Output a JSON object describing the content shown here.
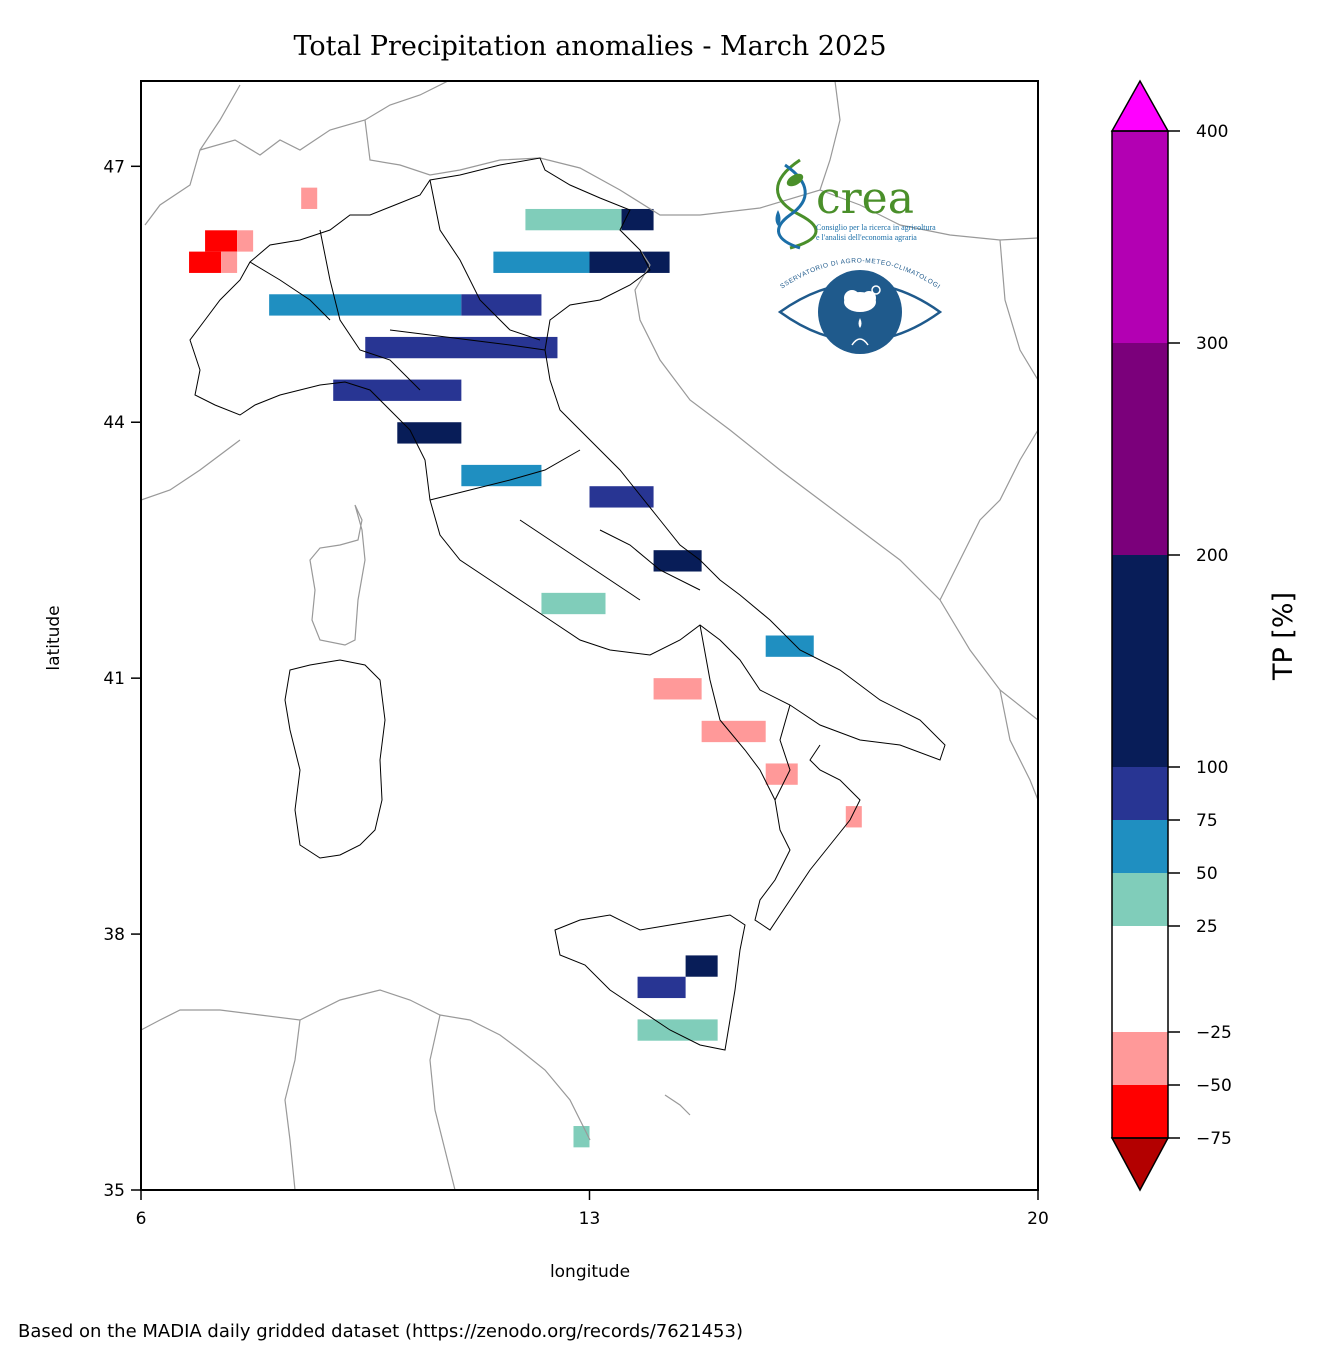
{
  "title": "Total Precipitation anomalies -  March 2025",
  "axes": {
    "xlabel": "longitude",
    "ylabel": "latitude",
    "xlim": [
      6,
      20
    ],
    "ylim": [
      35,
      48
    ],
    "xticks": [
      {
        "value": 6,
        "label": "6"
      },
      {
        "value": 13,
        "label": "13"
      },
      {
        "value": 20,
        "label": "20"
      }
    ],
    "yticks": [
      {
        "value": 35,
        "label": "35"
      },
      {
        "value": 38,
        "label": "38"
      },
      {
        "value": 41,
        "label": "41"
      },
      {
        "value": 44,
        "label": "44"
      },
      {
        "value": 47,
        "label": "47"
      }
    ]
  },
  "colorbar": {
    "label": "TP [%]",
    "under_color": "#b30000",
    "over_color": "#ff00ff",
    "levels": [
      {
        "from": -75,
        "to": -50,
        "color": "#ff0000"
      },
      {
        "from": -50,
        "to": -25,
        "color": "#ff9999"
      },
      {
        "from": -25,
        "to": 25,
        "color": "#ffffff"
      },
      {
        "from": 25,
        "to": 50,
        "color": "#80cdba"
      },
      {
        "from": 50,
        "to": 75,
        "color": "#1f8fc1"
      },
      {
        "from": 75,
        "to": 100,
        "color": "#283593"
      },
      {
        "from": 100,
        "to": 200,
        "color": "#081d58"
      },
      {
        "from": 200,
        "to": 300,
        "color": "#7b007b"
      },
      {
        "from": 300,
        "to": 400,
        "color": "#b300b3"
      }
    ],
    "ticks": [
      {
        "value": 400,
        "label": "400"
      },
      {
        "value": 300,
        "label": "300"
      },
      {
        "value": 200,
        "label": "200"
      },
      {
        "value": 100,
        "label": "100"
      },
      {
        "value": 75,
        "label": "75"
      },
      {
        "value": 50,
        "label": "50"
      },
      {
        "value": 25,
        "label": "25"
      },
      {
        "value": -25,
        "label": "−25"
      },
      {
        "value": -50,
        "label": "−50"
      },
      {
        "value": -75,
        "label": "−75"
      }
    ]
  },
  "logo": {
    "brand": "crea",
    "subtitle_line1": "Consiglio per la ricerca in agricoltura",
    "subtitle_line2": "e l'analisi dell'economia agraria",
    "observatory": "OSSERVATORIO DI AGRO-METEO-CLIMATOLOGIA",
    "green": "#4a8f2a",
    "blue": "#1b6fa8",
    "navy": "#1f5a8c"
  },
  "credit": "Based on the MADIA daily gridded dataset (https://zenodo.org/records/7621453)",
  "colors": {
    "country_border": "#999999",
    "region_border": "#000000",
    "frame": "#000000"
  },
  "chart_data": {
    "type": "heatmap",
    "cell_size_deg": 0.25,
    "categories_legend": {
      "D2": "-75 to -50",
      "D1": "-50 to -25",
      "W1": "25 to 50",
      "W2": "50 to 75",
      "W3": "75 to 100",
      "W4": "100 to 200"
    },
    "cells": [
      {
        "lat": 46.5,
        "lon": 8.5,
        "lon_to": 8.75,
        "class": "D1"
      },
      {
        "lat": 46.0,
        "lon": 7.0,
        "lon_to": 7.5,
        "class": "D2"
      },
      {
        "lat": 46.0,
        "lon": 7.5,
        "lon_to": 7.75,
        "class": "D1"
      },
      {
        "lat": 45.75,
        "lon": 6.75,
        "lon_to": 7.25,
        "class": "D2"
      },
      {
        "lat": 45.75,
        "lon": 7.25,
        "lon_to": 7.5,
        "class": "D1"
      },
      {
        "lat": 46.25,
        "lon": 12.0,
        "lon_to": 13.5,
        "class": "W1"
      },
      {
        "lat": 46.25,
        "lon": 13.5,
        "lon_to": 14.0,
        "class": "W4"
      },
      {
        "lat": 45.75,
        "lon": 11.5,
        "lon_to": 13.0,
        "class": "W2"
      },
      {
        "lat": 45.75,
        "lon": 13.0,
        "lon_to": 14.25,
        "class": "W4"
      },
      {
        "lat": 45.25,
        "lon": 8.0,
        "lon_to": 11.0,
        "class": "W2"
      },
      {
        "lat": 45.25,
        "lon": 11.0,
        "lon_to": 12.25,
        "class": "W3"
      },
      {
        "lat": 44.75,
        "lon": 9.5,
        "lon_to": 12.5,
        "class": "W3"
      },
      {
        "lat": 44.25,
        "lon": 9.0,
        "lon_to": 11.0,
        "class": "W3"
      },
      {
        "lat": 43.75,
        "lon": 10.0,
        "lon_to": 11.0,
        "class": "W4"
      },
      {
        "lat": 43.25,
        "lon": 11.0,
        "lon_to": 12.25,
        "class": "W2"
      },
      {
        "lat": 43.0,
        "lon": 13.0,
        "lon_to": 14.0,
        "class": "W3"
      },
      {
        "lat": 42.25,
        "lon": 14.0,
        "lon_to": 14.75,
        "class": "W4"
      },
      {
        "lat": 41.75,
        "lon": 12.25,
        "lon_to": 13.25,
        "class": "W1"
      },
      {
        "lat": 41.25,
        "lon": 15.75,
        "lon_to": 16.5,
        "class": "W2"
      },
      {
        "lat": 40.75,
        "lon": 14.0,
        "lon_to": 14.75,
        "class": "D1"
      },
      {
        "lat": 40.25,
        "lon": 14.75,
        "lon_to": 15.75,
        "class": "D1"
      },
      {
        "lat": 39.75,
        "lon": 15.75,
        "lon_to": 16.25,
        "class": "D1"
      },
      {
        "lat": 39.25,
        "lon": 17.0,
        "lon_to": 17.25,
        "class": "D1"
      },
      {
        "lat": 37.5,
        "lon": 14.5,
        "lon_to": 15.0,
        "class": "W4"
      },
      {
        "lat": 37.25,
        "lon": 13.75,
        "lon_to": 14.5,
        "class": "W3"
      },
      {
        "lat": 36.75,
        "lon": 13.75,
        "lon_to": 15.0,
        "class": "W1"
      },
      {
        "lat": 35.5,
        "lon": 12.75,
        "lon_to": 13.0,
        "class": "W1"
      }
    ]
  }
}
